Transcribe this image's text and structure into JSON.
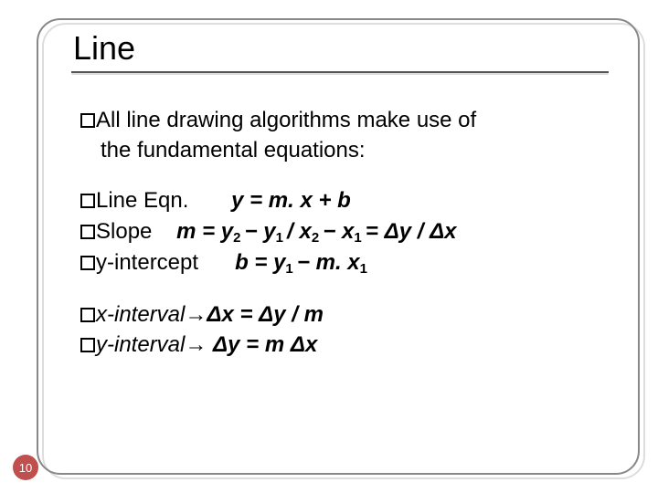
{
  "title": "Line",
  "intro_lead": "All line drawing algorithms make use of",
  "intro_rest": "the fundamental equations:",
  "eq1_label": "Line Eqn.",
  "eq1_var": "y = m. x + b",
  "eq2_label": "Slope",
  "eq2_m": "m = y",
  "eq2_s1": "2 ",
  "eq2_a": "− y",
  "eq2_s2": "1 ",
  "eq2_b": "/ x",
  "eq2_s3": "2 ",
  "eq2_c": "− x",
  "eq2_s4": "1 ",
  "eq2_d": "= Δy / Δx",
  "eq3_label": "y-intercept",
  "eq3_m": "b = y",
  "eq3_s1": "1 ",
  "eq3_a": "− m. x",
  "eq3_s2": "1",
  "eq4_label": "x-interval",
  "eq4_r": "→Δx = Δy / m",
  "eq5_label": "y-interval",
  "eq5_r": "→ Δy = m Δx",
  "page_number": "10",
  "colors": {
    "accent_circle": "#c0504d",
    "text": "#000000",
    "border": "#888888",
    "shadow": "#dddddd"
  }
}
